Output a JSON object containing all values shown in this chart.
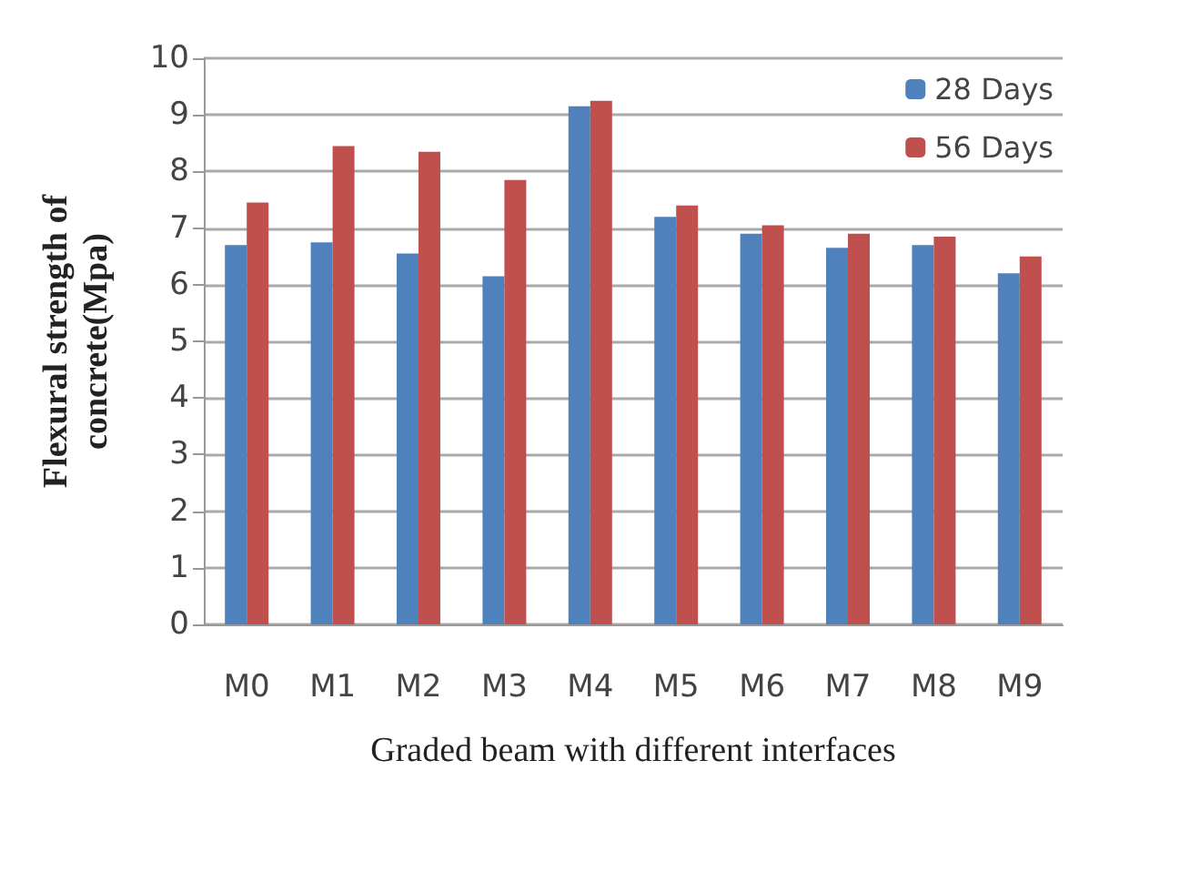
{
  "chart_data": {
    "type": "bar",
    "xlabel": "Graded beam with different interfaces",
    "ylabel": "Flexural strength of\nconcrete(Mpa)",
    "categories": [
      "M0",
      "M1",
      "M2",
      "M3",
      "M4",
      "M5",
      "M6",
      "M7",
      "M8",
      "M9"
    ],
    "series": [
      {
        "name": "28 Days",
        "color": "#4f81bd",
        "values": [
          6.7,
          6.75,
          6.55,
          6.15,
          9.15,
          7.2,
          6.9,
          6.65,
          6.7,
          6.2
        ]
      },
      {
        "name": "56 Days",
        "color": "#c0504d",
        "values": [
          7.45,
          8.45,
          8.35,
          7.85,
          9.25,
          7.4,
          7.05,
          6.9,
          6.85,
          6.5
        ]
      }
    ],
    "ylim": [
      0,
      10
    ],
    "yticks": [
      0,
      1,
      2,
      3,
      4,
      5,
      6,
      7,
      8,
      9,
      10
    ],
    "grid": "y",
    "legend": "top right"
  }
}
